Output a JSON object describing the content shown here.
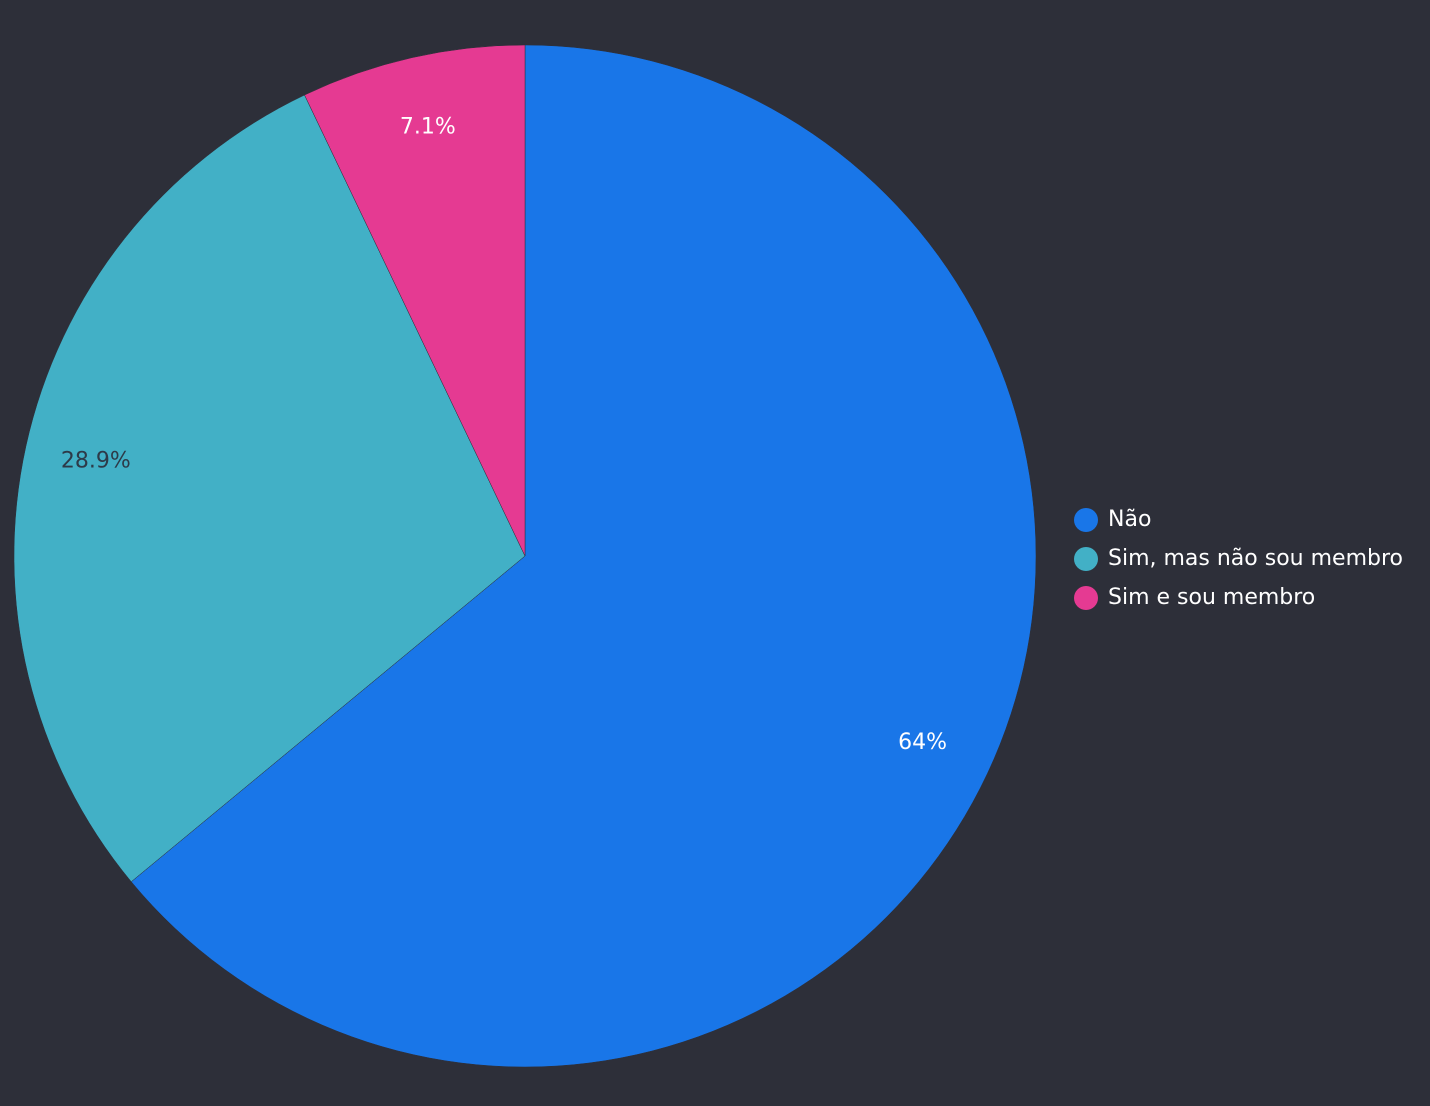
{
  "chart_data": {
    "type": "pie",
    "categories": [
      "Não",
      "Sim, mas não sou membro",
      "Sim e sou membro"
    ],
    "values": [
      64,
      28.9,
      7.1
    ],
    "data_labels": [
      "64%",
      "28.9%",
      "7.1%"
    ],
    "colors": [
      "#1976e8",
      "#42b0c6",
      "#e53a92"
    ],
    "label_colors": [
      "#ffffff",
      "#2d3a48",
      "#ffffff"
    ],
    "start_angle_deg": 0,
    "direction": "clockwise",
    "legend_position": "right"
  }
}
